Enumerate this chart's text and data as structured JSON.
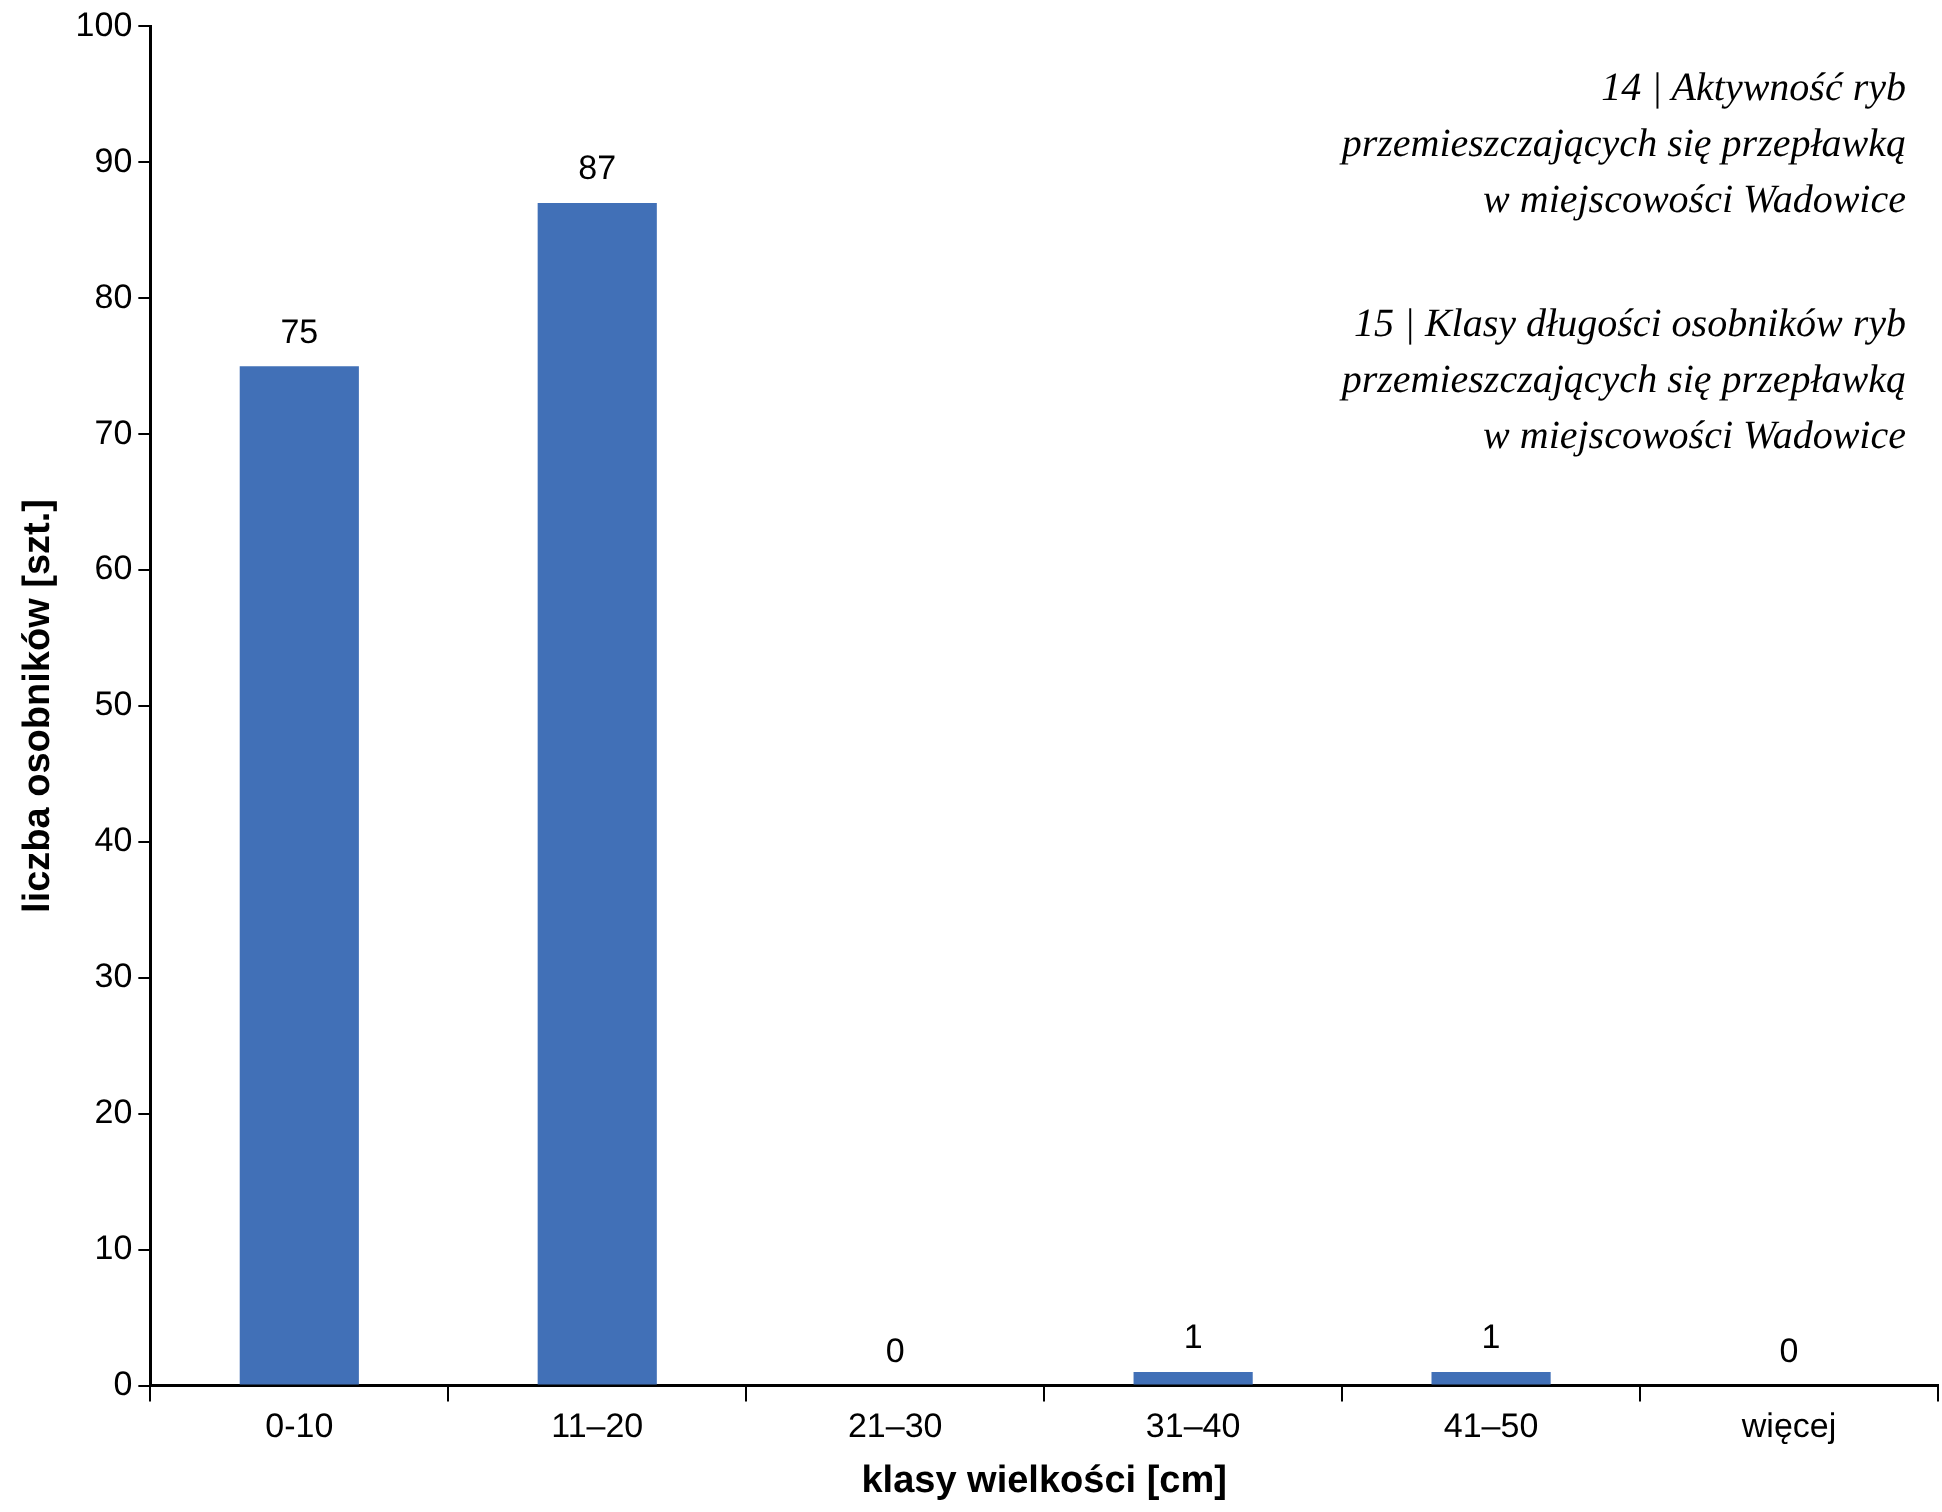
{
  "chart_data": {
    "type": "bar",
    "xlabel": "klasy wielkości [cm]",
    "ylabel": "liczba osobników [szt.]",
    "categories": [
      "0-10",
      "11–20",
      "21–30",
      "31–40",
      "41–50",
      "więcej"
    ],
    "values": [
      75,
      87,
      0,
      1,
      1,
      0
    ],
    "color": "#4170b7",
    "ylim": [
      0,
      100
    ],
    "yticks": [
      0,
      10,
      20,
      30,
      40,
      50,
      60,
      70,
      80,
      90,
      100
    ],
    "grid": false,
    "legend": false,
    "data_labels": true,
    "annotations": [
      "14 | Aktywność ryb\nprzemieszczających się przepławką\nw miejscowości Wadowice",
      "15 | Klasy długości osobników ryb\nprzemieszczających się przepławką\nw miejscowości Wadowice"
    ]
  }
}
